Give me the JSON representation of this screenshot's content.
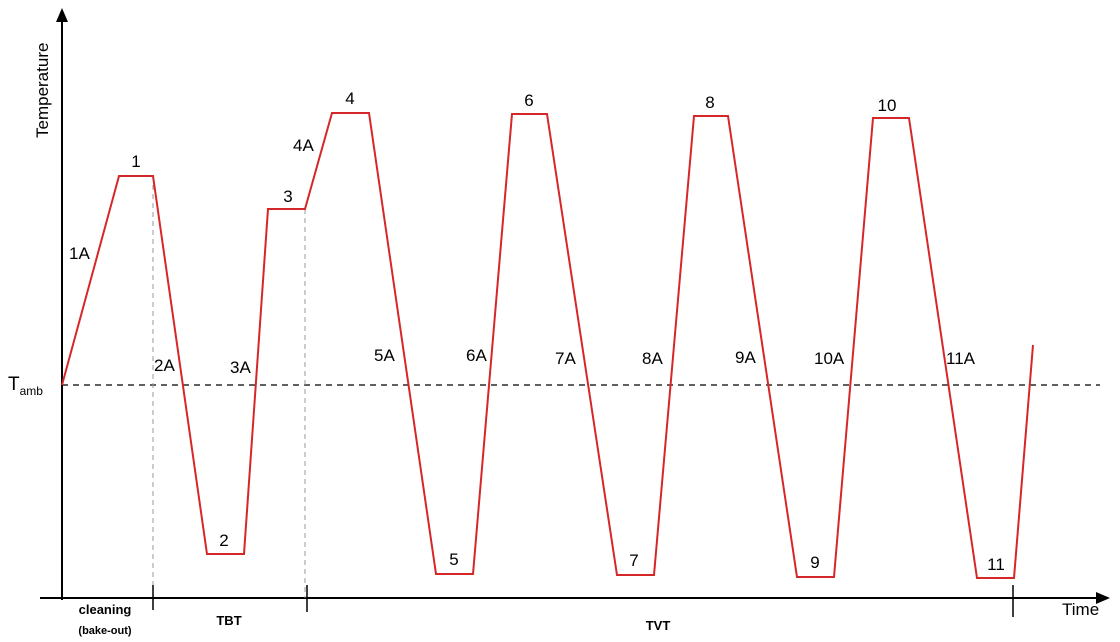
{
  "axes": {
    "y_label": "Temperature",
    "x_label": "Time"
  },
  "reference": {
    "symbol": "T",
    "subscript": "amb"
  },
  "phases": {
    "cleaning": "cleaning",
    "cleaning_sub": "(bake-out)",
    "tbt": "TBT",
    "tvt": "TVT"
  },
  "points": {
    "p1": "1",
    "p2": "2",
    "p3": "3",
    "p4": "4",
    "p5": "5",
    "p6": "6",
    "p7": "7",
    "p8": "8",
    "p9": "9",
    "p10": "10",
    "p11": "11",
    "a1": "1A",
    "a2": "2A",
    "a3": "3A",
    "a4": "4A",
    "a5": "5A",
    "a6": "6A",
    "a7": "7A",
    "a8": "8A",
    "a9": "9A",
    "a10": "10A",
    "a11": "11A"
  },
  "colors": {
    "profile": "#d62728",
    "axes": "#000000",
    "reference_line": "#000000",
    "phase_divider": "#999999"
  }
}
